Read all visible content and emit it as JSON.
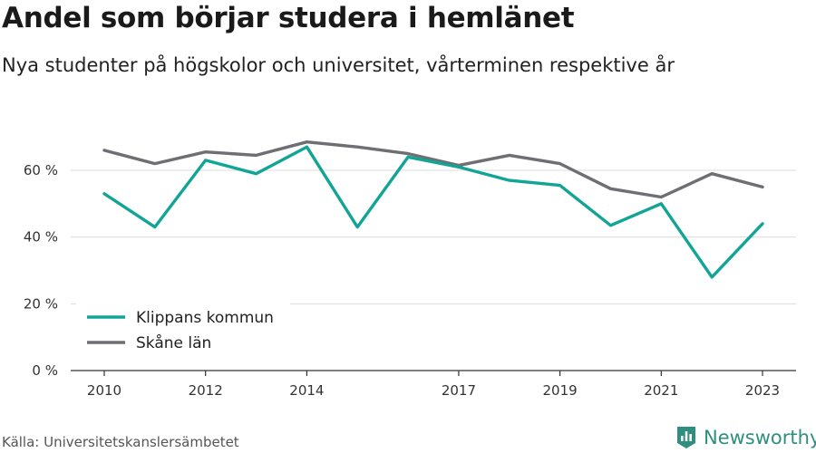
{
  "header": {
    "title": "Andel som börjar studera i hemlänet",
    "subtitle": "Nya studenter på högskolor och universitet, vårterminen respektive år"
  },
  "footer": {
    "source": "Källa: Universitetskanslersämbetet",
    "brand": "Newsworthy",
    "brand_icon": "bar-chart-logo-icon"
  },
  "colors": {
    "klippan": "#12a596",
    "skane": "#6e6e73",
    "brand": "#2f8f7e"
  },
  "chart_data": {
    "type": "line",
    "title": "Andel som börjar studera i hemlänet",
    "subtitle": "Nya studenter på högskolor och universitet, vårterminen respektive år",
    "x": [
      2010,
      2011,
      2012,
      2013,
      2014,
      2015,
      2016,
      2017,
      2018,
      2019,
      2020,
      2021,
      2022,
      2023
    ],
    "xticks": [
      2010,
      2012,
      2014,
      2017,
      2019,
      2021,
      2023
    ],
    "yticks": [
      0,
      20,
      40,
      60
    ],
    "ytick_labels": [
      "0 %",
      "20 %",
      "40 %",
      "60 %"
    ],
    "ylim": [
      0,
      72
    ],
    "xlabel": "",
    "ylabel": "",
    "grid": "horizontal",
    "legend": "bottom-left",
    "series": [
      {
        "name": "Klippans kommun",
        "color": "#12a596",
        "values": [
          53,
          43,
          63,
          59,
          67,
          43,
          64,
          61,
          57,
          55.5,
          43.5,
          50,
          28,
          44
        ]
      },
      {
        "name": "Skåne län",
        "color": "#6e6e73",
        "values": [
          66,
          62,
          65.5,
          64.5,
          68.5,
          67,
          65,
          61.5,
          64.5,
          62,
          54.5,
          52,
          59,
          55
        ]
      }
    ]
  }
}
